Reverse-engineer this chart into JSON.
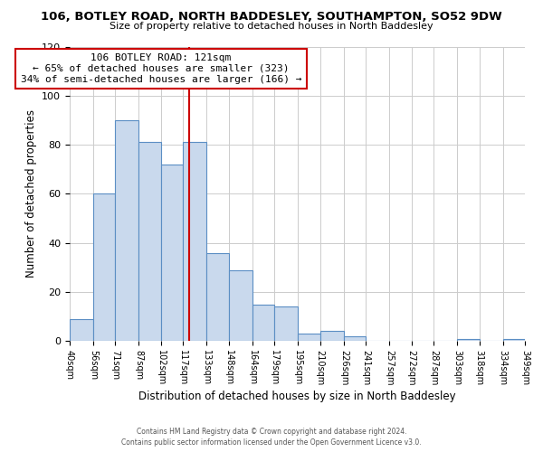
{
  "title": "106, BOTLEY ROAD, NORTH BADDESLEY, SOUTHAMPTON, SO52 9DW",
  "subtitle": "Size of property relative to detached houses in North Baddesley",
  "xlabel": "Distribution of detached houses by size in North Baddesley",
  "ylabel": "Number of detached properties",
  "bin_edges": [
    40,
    56,
    71,
    87,
    102,
    117,
    133,
    148,
    164,
    179,
    195,
    210,
    226,
    241,
    257,
    272,
    287,
    303,
    318,
    334,
    349
  ],
  "bin_labels": [
    "40sqm",
    "56sqm",
    "71sqm",
    "87sqm",
    "102sqm",
    "117sqm",
    "133sqm",
    "148sqm",
    "164sqm",
    "179sqm",
    "195sqm",
    "210sqm",
    "226sqm",
    "241sqm",
    "257sqm",
    "272sqm",
    "287sqm",
    "303sqm",
    "318sqm",
    "334sqm",
    "349sqm"
  ],
  "bar_heights": [
    9,
    60,
    90,
    81,
    72,
    81,
    36,
    29,
    15,
    14,
    3,
    4,
    2,
    0,
    0,
    0,
    0,
    1,
    0,
    1
  ],
  "bar_facecolor": "#c9d9ed",
  "bar_edgecolor": "#5b8ec4",
  "vline_x": 121,
  "vline_color": "#cc0000",
  "ylim": [
    0,
    120
  ],
  "yticks": [
    0,
    20,
    40,
    60,
    80,
    100,
    120
  ],
  "annotation_title": "106 BOTLEY ROAD: 121sqm",
  "annotation_line1": "← 65% of detached houses are smaller (323)",
  "annotation_line2": "34% of semi-detached houses are larger (166) →",
  "annotation_box_color": "#cc0000",
  "footer_line1": "Contains HM Land Registry data © Crown copyright and database right 2024.",
  "footer_line2": "Contains public sector information licensed under the Open Government Licence v3.0.",
  "background_color": "#ffffff",
  "grid_color": "#cccccc"
}
